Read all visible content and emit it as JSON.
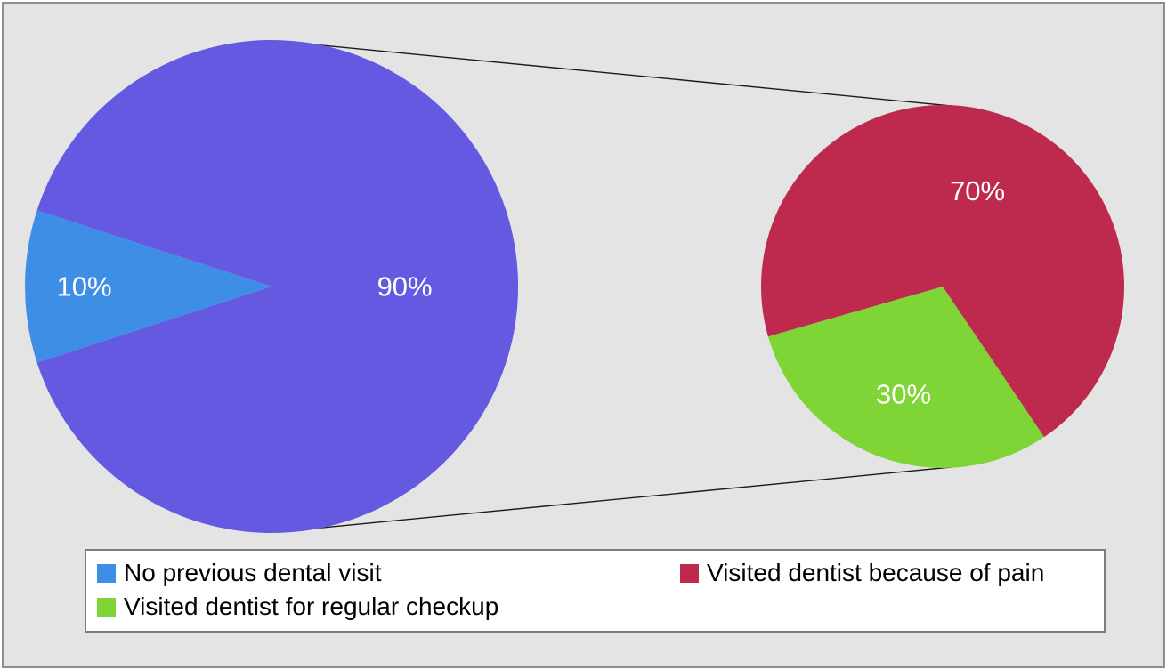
{
  "chart_data": {
    "type": "pie",
    "subtype": "pie-of-pie",
    "title": "",
    "legend_position": "bottom",
    "main_pie": {
      "start_angle_deg": 162,
      "slices": [
        {
          "label": "No previous dental visit",
          "value": 10,
          "display": "10%",
          "color": "#3f8ee6",
          "label_r": 0.76
        },
        {
          "label": "",
          "value": 90,
          "display": "90%",
          "color": "#6459e0",
          "label_r": 0.54
        }
      ]
    },
    "secondary_pie": {
      "start_angle_deg": 196,
      "slices": [
        {
          "label": "Visited dentist for regular checkup",
          "value": 30,
          "display": "30%",
          "color": "#7fd436",
          "label_r": 0.63
        },
        {
          "label": "Visited dentist because of pain",
          "value": 70,
          "display": "70%",
          "color": "#bd2a4e",
          "label_r": 0.56
        }
      ]
    },
    "legend": [
      {
        "label": "No previous dental visit",
        "color": "#3f8ee6"
      },
      {
        "label": "Visited dentist because of pain",
        "color": "#bd2a4e"
      },
      {
        "label": "Visited dentist for regular checkup",
        "color": "#7fd436"
      }
    ],
    "slice_label_color": "#ffffff",
    "background_color": "#e4e4e4"
  }
}
